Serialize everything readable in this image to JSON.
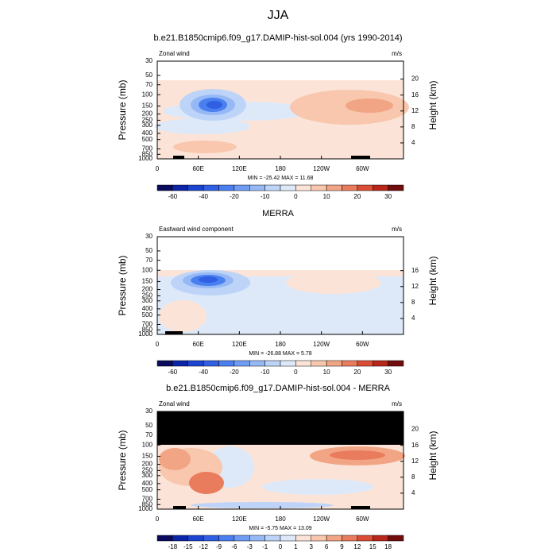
{
  "chart_data": {
    "type": "contour",
    "title": "JJA",
    "ylabel": "Pressure (mb)",
    "y2label": "Height (km)",
    "ylim": [
      1000,
      30
    ],
    "ylog": true,
    "yticks": [
      30,
      50,
      70,
      100,
      150,
      200,
      250,
      300,
      400,
      500,
      700,
      850,
      1000
    ],
    "y2lim": [
      0,
      24.5
    ],
    "xlim": [
      0,
      360
    ],
    "xticks": [
      0,
      {
        "value": 60,
        "label": "60E"
      },
      {
        "value": 120,
        "label": "120E"
      },
      180,
      {
        "value": 240,
        "label": "120W"
      },
      {
        "value": 300,
        "label": "60W"
      }
    ],
    "panels": [
      {
        "title": "b.e21.B1850cmip6.f09_g17.DAMIP-hist-sol.004 (yrs 1990-2014)",
        "left_label": "Zonal wind",
        "units": "m/s",
        "stats": "MIN = -25.42  MAX =  11.68",
        "y2ticks": [
          20,
          16,
          12,
          8,
          4
        ],
        "colorbar": {
          "colors": [
            "#0b0b5e",
            "#0c24a8",
            "#1c44d0",
            "#2f5fe2",
            "#4a7ff0",
            "#6f9cf4",
            "#96b9f6",
            "#bdd4f8",
            "#dde9f9",
            "#fbe4d7",
            "#f8c7ae",
            "#f2a585",
            "#ea7c5e",
            "#dc4d35",
            "#b8271a",
            "#730c0c"
          ],
          "labels": [
            -60,
            -40,
            -20,
            -10,
            0,
            10,
            20,
            30
          ]
        }
      },
      {
        "title": "MERRA",
        "left_label": "Eastward wind component",
        "units": "m/s",
        "stats": "MIN = -26.88  MAX =  5.78",
        "y2ticks": [
          16,
          12,
          8,
          4
        ],
        "colorbar": {
          "colors": [
            "#0b0b5e",
            "#0c24a8",
            "#1c44d0",
            "#2f5fe2",
            "#4a7ff0",
            "#6f9cf4",
            "#96b9f6",
            "#bdd4f8",
            "#dde9f9",
            "#fbe4d7",
            "#f8c7ae",
            "#f2a585",
            "#ea7c5e",
            "#dc4d35",
            "#b8271a",
            "#730c0c"
          ],
          "labels": [
            -60,
            -40,
            -20,
            -10,
            0,
            10,
            20,
            30
          ]
        }
      },
      {
        "title": "b.e21.B1850cmip6.f09_g17.DAMIP-hist-sol.004 - MERRA",
        "left_label": "Zonal wind",
        "units": "m/s",
        "stats": "MIN = -5.75  MAX =  13.09",
        "y2ticks": [
          20,
          16,
          12,
          8,
          4
        ],
        "colorbar": {
          "colors": [
            "#0b0b5e",
            "#0c24a8",
            "#1c44d0",
            "#2f5fe2",
            "#4a7ff0",
            "#6f9cf4",
            "#96b9f6",
            "#bdd4f8",
            "#dde9f9",
            "#fbe4d7",
            "#f8c7ae",
            "#f2a585",
            "#ea7c5e",
            "#dc4d35",
            "#b8271a",
            "#730c0c"
          ],
          "labels": [
            -18,
            -15,
            -12,
            -9,
            -6,
            -3,
            -1,
            0,
            1,
            3,
            6,
            9,
            12,
            15,
            18
          ]
        }
      }
    ]
  }
}
